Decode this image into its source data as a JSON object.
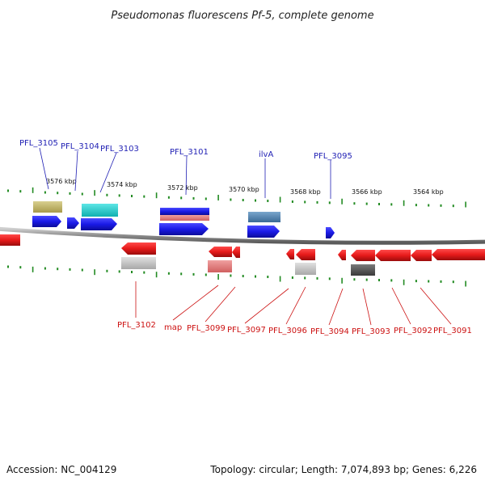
{
  "title": "Pseudomonas fluorescens Pf-5, complete genome",
  "footer": {
    "accession": "Accession: NC_004129",
    "topology": "Topology: circular; Length: 7,074,893 bp; Genes: 6,226"
  },
  "scale_labels": [
    "3576 kbp",
    "3574 kbp",
    "3572 kbp",
    "3570 kbp",
    "3568 kbp",
    "3566 kbp",
    "3564 kbp"
  ],
  "top_labels": [
    "PFL_3105",
    "PFL_3104",
    "PFL_3103",
    "PFL_3101",
    "ilvA",
    "PFL_3095"
  ],
  "bottom_labels": [
    "PFL_3102",
    "map",
    "PFL_3099",
    "PFL_3097",
    "PFL_3096",
    "PFL_3094",
    "PFL_3093",
    "PFL_3092",
    "PFL_3091"
  ],
  "colors": {
    "forward_gene": "#1a1ae6",
    "reverse_gene": "#e61a1a",
    "backbone": "#888888",
    "ticks": "#228b22",
    "top_label": "#1f1fb4",
    "bottom_label": "#cc1111"
  }
}
